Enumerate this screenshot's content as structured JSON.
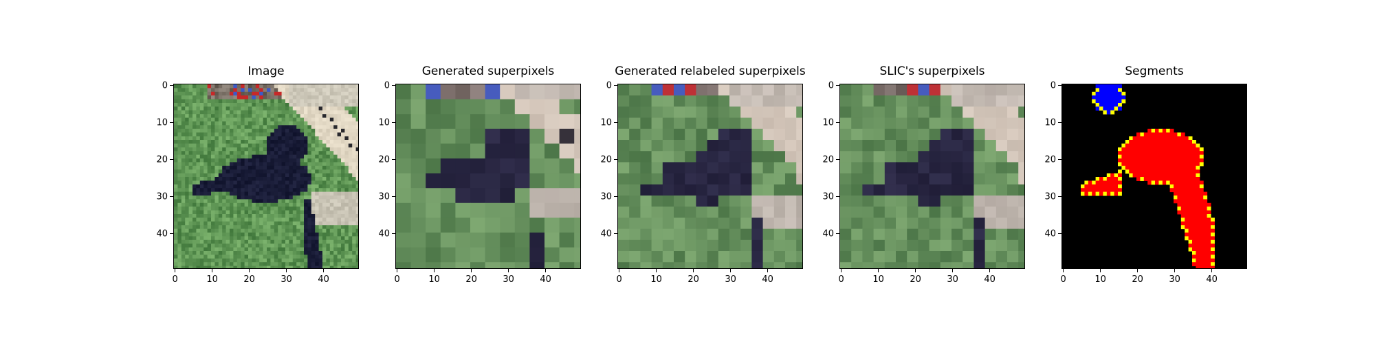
{
  "chart_data": [
    {
      "type": "image",
      "title": "Image",
      "xlim": [
        0,
        50
      ],
      "ylim": [
        50,
        0
      ],
      "xticks": [
        0,
        10,
        20,
        30,
        40
      ],
      "yticks": [
        0,
        10,
        20,
        30,
        40
      ],
      "rendering": "photo"
    },
    {
      "type": "image",
      "title": "Generated superpixels",
      "xlim": [
        0,
        50
      ],
      "ylim": [
        50,
        0
      ],
      "xticks": [
        0,
        10,
        20,
        30,
        40
      ],
      "yticks": [
        0,
        10,
        20,
        30,
        40
      ],
      "rendering": "superpixels"
    },
    {
      "type": "image",
      "title": "Generated relabeled superpixels",
      "xlim": [
        0,
        50
      ],
      "ylim": [
        50,
        0
      ],
      "xticks": [
        0,
        10,
        20,
        30,
        40
      ],
      "yticks": [
        0,
        10,
        20,
        30,
        40
      ],
      "rendering": "relabeled"
    },
    {
      "type": "image",
      "title": "SLIC's superpixels",
      "xlim": [
        0,
        50
      ],
      "ylim": [
        50,
        0
      ],
      "xticks": [
        0,
        10,
        20,
        30,
        40
      ],
      "yticks": [
        0,
        10,
        20,
        30,
        40
      ],
      "rendering": "slic"
    },
    {
      "type": "image",
      "title": "Segments",
      "xlim": [
        0,
        50
      ],
      "ylim": [
        50,
        0
      ],
      "xticks": [
        0,
        10,
        20,
        30,
        40
      ],
      "yticks": [
        0,
        10,
        20,
        30,
        40
      ],
      "rendering": "segments",
      "colors": {
        "background": "#000000",
        "segment_1": "#0000ff",
        "segment_2": "#ff0000",
        "boundary": "#ffff00"
      }
    }
  ]
}
